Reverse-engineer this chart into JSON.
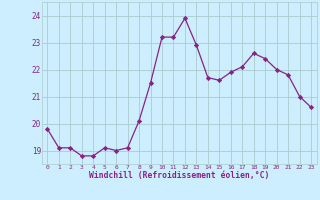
{
  "x": [
    0,
    1,
    2,
    3,
    4,
    5,
    6,
    7,
    8,
    9,
    10,
    11,
    12,
    13,
    14,
    15,
    16,
    17,
    18,
    19,
    20,
    21,
    22,
    23
  ],
  "y": [
    19.8,
    19.1,
    19.1,
    18.8,
    18.8,
    19.1,
    19.0,
    19.1,
    20.1,
    21.5,
    23.2,
    23.2,
    23.9,
    22.9,
    21.7,
    21.6,
    21.9,
    22.1,
    22.6,
    22.4,
    22.0,
    21.8,
    21.0,
    20.6
  ],
  "line_color": "#882288",
  "marker": "D",
  "marker_size": 2.2,
  "bg_color": "#cceeff",
  "grid_color": "#aacccc",
  "xlabel": "Windchill (Refroidissement éolien,°C)",
  "xlabel_color": "#882288",
  "tick_color": "#882288",
  "ylim": [
    18.5,
    24.5
  ],
  "yticks": [
    19,
    20,
    21,
    22,
    23,
    24
  ],
  "xticks": [
    0,
    1,
    2,
    3,
    4,
    5,
    6,
    7,
    8,
    9,
    10,
    11,
    12,
    13,
    14,
    15,
    16,
    17,
    18,
    19,
    20,
    21,
    22,
    23
  ],
  "figsize": [
    3.2,
    2.0
  ],
  "dpi": 100
}
